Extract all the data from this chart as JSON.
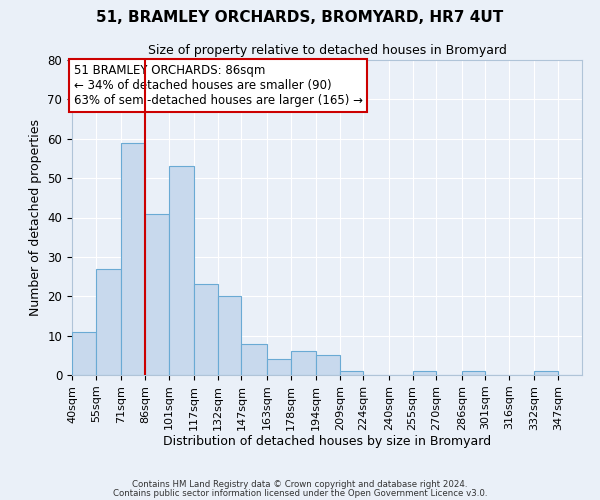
{
  "title": "51, BRAMLEY ORCHARDS, BROMYARD, HR7 4UT",
  "subtitle": "Size of property relative to detached houses in Bromyard",
  "xlabel": "Distribution of detached houses by size in Bromyard",
  "ylabel": "Number of detached properties",
  "bar_color": "#c8d9ed",
  "bar_edge_color": "#6aaad4",
  "background_color": "#eaf0f8",
  "grid_color": "#ffffff",
  "bin_labels": [
    "40sqm",
    "55sqm",
    "71sqm",
    "86sqm",
    "101sqm",
    "117sqm",
    "132sqm",
    "147sqm",
    "163sqm",
    "178sqm",
    "194sqm",
    "209sqm",
    "224sqm",
    "240sqm",
    "255sqm",
    "270sqm",
    "286sqm",
    "301sqm",
    "316sqm",
    "332sqm",
    "347sqm"
  ],
  "bar_heights": [
    11,
    27,
    59,
    41,
    53,
    23,
    20,
    8,
    4,
    6,
    5,
    1,
    0,
    0,
    1,
    0,
    1,
    0,
    0,
    1,
    0
  ],
  "bin_edges": [
    40,
    55,
    71,
    86,
    101,
    117,
    132,
    147,
    163,
    178,
    194,
    209,
    224,
    240,
    255,
    270,
    286,
    301,
    316,
    332,
    347,
    362
  ],
  "vline_x": 86,
  "vline_color": "#cc0000",
  "ylim": [
    0,
    80
  ],
  "yticks": [
    0,
    10,
    20,
    30,
    40,
    50,
    60,
    70,
    80
  ],
  "annotation_text": "51 BRAMLEY ORCHARDS: 86sqm\n← 34% of detached houses are smaller (90)\n63% of semi-detached houses are larger (165) →",
  "annotation_box_color": "#ffffff",
  "annotation_border_color": "#cc0000",
  "footer_line1": "Contains HM Land Registry data © Crown copyright and database right 2024.",
  "footer_line2": "Contains public sector information licensed under the Open Government Licence v3.0."
}
